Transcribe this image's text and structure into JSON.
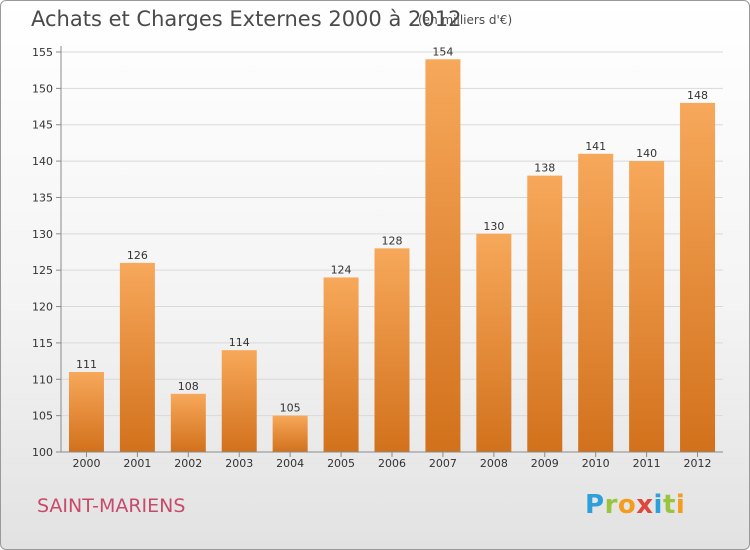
{
  "title": "Achats et Charges Externes 2000 à 2012",
  "subtitle": "(en milliers d'€)",
  "commune": "SAINT-MARIENS",
  "logo": {
    "letters": [
      "P",
      "r",
      "o",
      "x",
      "i",
      "t",
      "i"
    ],
    "colors": [
      "#2e9fd8",
      "#9ac43c",
      "#f39c1e",
      "#e0463c",
      "#2e9fd8",
      "#9ac43c",
      "#f39c1e"
    ]
  },
  "colors": {
    "bar_top": "#f7a85a",
    "bar_bottom": "#d2711c",
    "axis": "#8a8a8a",
    "grid": "#d9d9d9",
    "title": "#4a4a4a",
    "commune": "#c84a6a"
  },
  "chart_data": {
    "type": "bar",
    "title": "Achats et Charges Externes 2000 à 2012",
    "subtitle": "(en milliers d'€)",
    "categories": [
      "2000",
      "2001",
      "2002",
      "2003",
      "2004",
      "2005",
      "2006",
      "2007",
      "2008",
      "2009",
      "2010",
      "2011",
      "2012"
    ],
    "values": [
      111,
      126,
      108,
      114,
      105,
      124,
      128,
      154,
      130,
      138,
      141,
      140,
      148
    ],
    "xlabel": "",
    "ylabel": "",
    "ylim": [
      100,
      155
    ],
    "yticks": [
      100,
      105,
      110,
      115,
      120,
      125,
      130,
      135,
      140,
      145,
      150,
      155
    ],
    "grid": true,
    "legend": "none"
  }
}
